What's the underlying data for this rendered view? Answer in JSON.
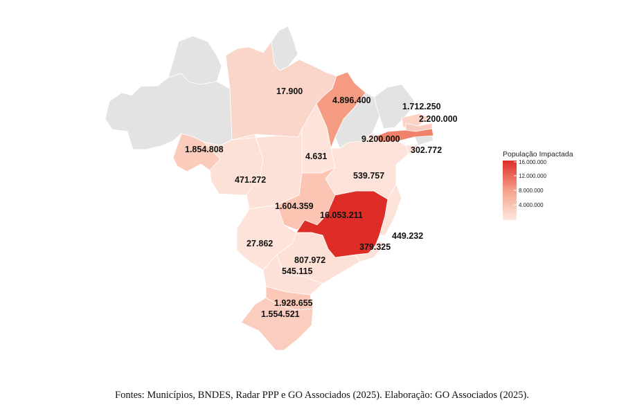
{
  "map": {
    "legend": {
      "title": "População Impactada",
      "ticks": [
        "16.000.000",
        "12.000.000",
        "8.000.000",
        "4.000.000"
      ],
      "color_low": "#fde0d7",
      "color_high": "#de2d26",
      "no_data_color": "#e3e3e3"
    },
    "labels": [
      {
        "value": "17.900"
      },
      {
        "value": "4.896.400"
      },
      {
        "value": "1.712.250"
      },
      {
        "value": "2.200.000"
      },
      {
        "value": "9.200.000"
      },
      {
        "value": "302.772"
      },
      {
        "value": "1.854.808"
      },
      {
        "value": "4.631"
      },
      {
        "value": "471.272"
      },
      {
        "value": "539.757"
      },
      {
        "value": "1.604.359"
      },
      {
        "value": "16.053.211"
      },
      {
        "value": "449.232"
      },
      {
        "value": "379.325"
      },
      {
        "value": "27.862"
      },
      {
        "value": "807.972"
      },
      {
        "value": "545.115"
      },
      {
        "value": "1.928.655"
      },
      {
        "value": "1.554.521"
      }
    ]
  },
  "caption": "Fontes: Municípios, BNDES, Radar PPP e GO Associados (2025). Elaboração: GO Associados (2025)."
}
